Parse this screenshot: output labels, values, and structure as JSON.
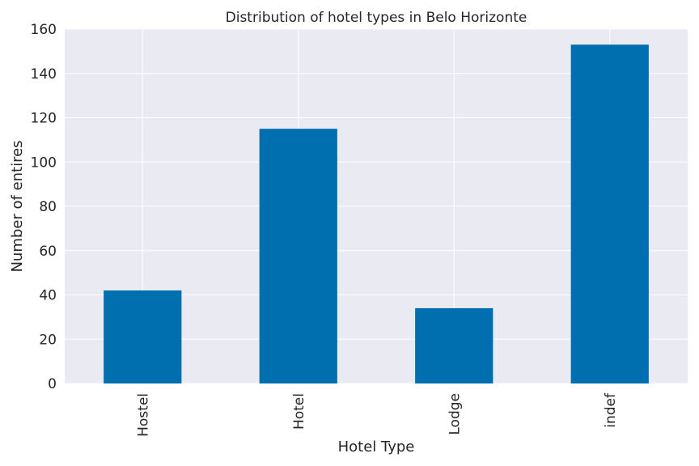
{
  "chart_data": {
    "type": "bar",
    "title": "Distribution of hotel types in Belo Horizonte",
    "xlabel": "Hotel Type",
    "ylabel": "Number of entires",
    "categories": [
      "Hostel",
      "Hotel",
      "Lodge",
      "indef"
    ],
    "values": [
      42,
      115,
      34,
      153
    ],
    "ylim": [
      0,
      160
    ],
    "yticks": [
      0,
      20,
      40,
      60,
      80,
      100,
      120,
      140,
      160
    ],
    "grid": true,
    "legend": "none",
    "colors": {
      "bar": "#006fb0",
      "background": "#eaeaf2",
      "grid": "#ffffff"
    }
  }
}
